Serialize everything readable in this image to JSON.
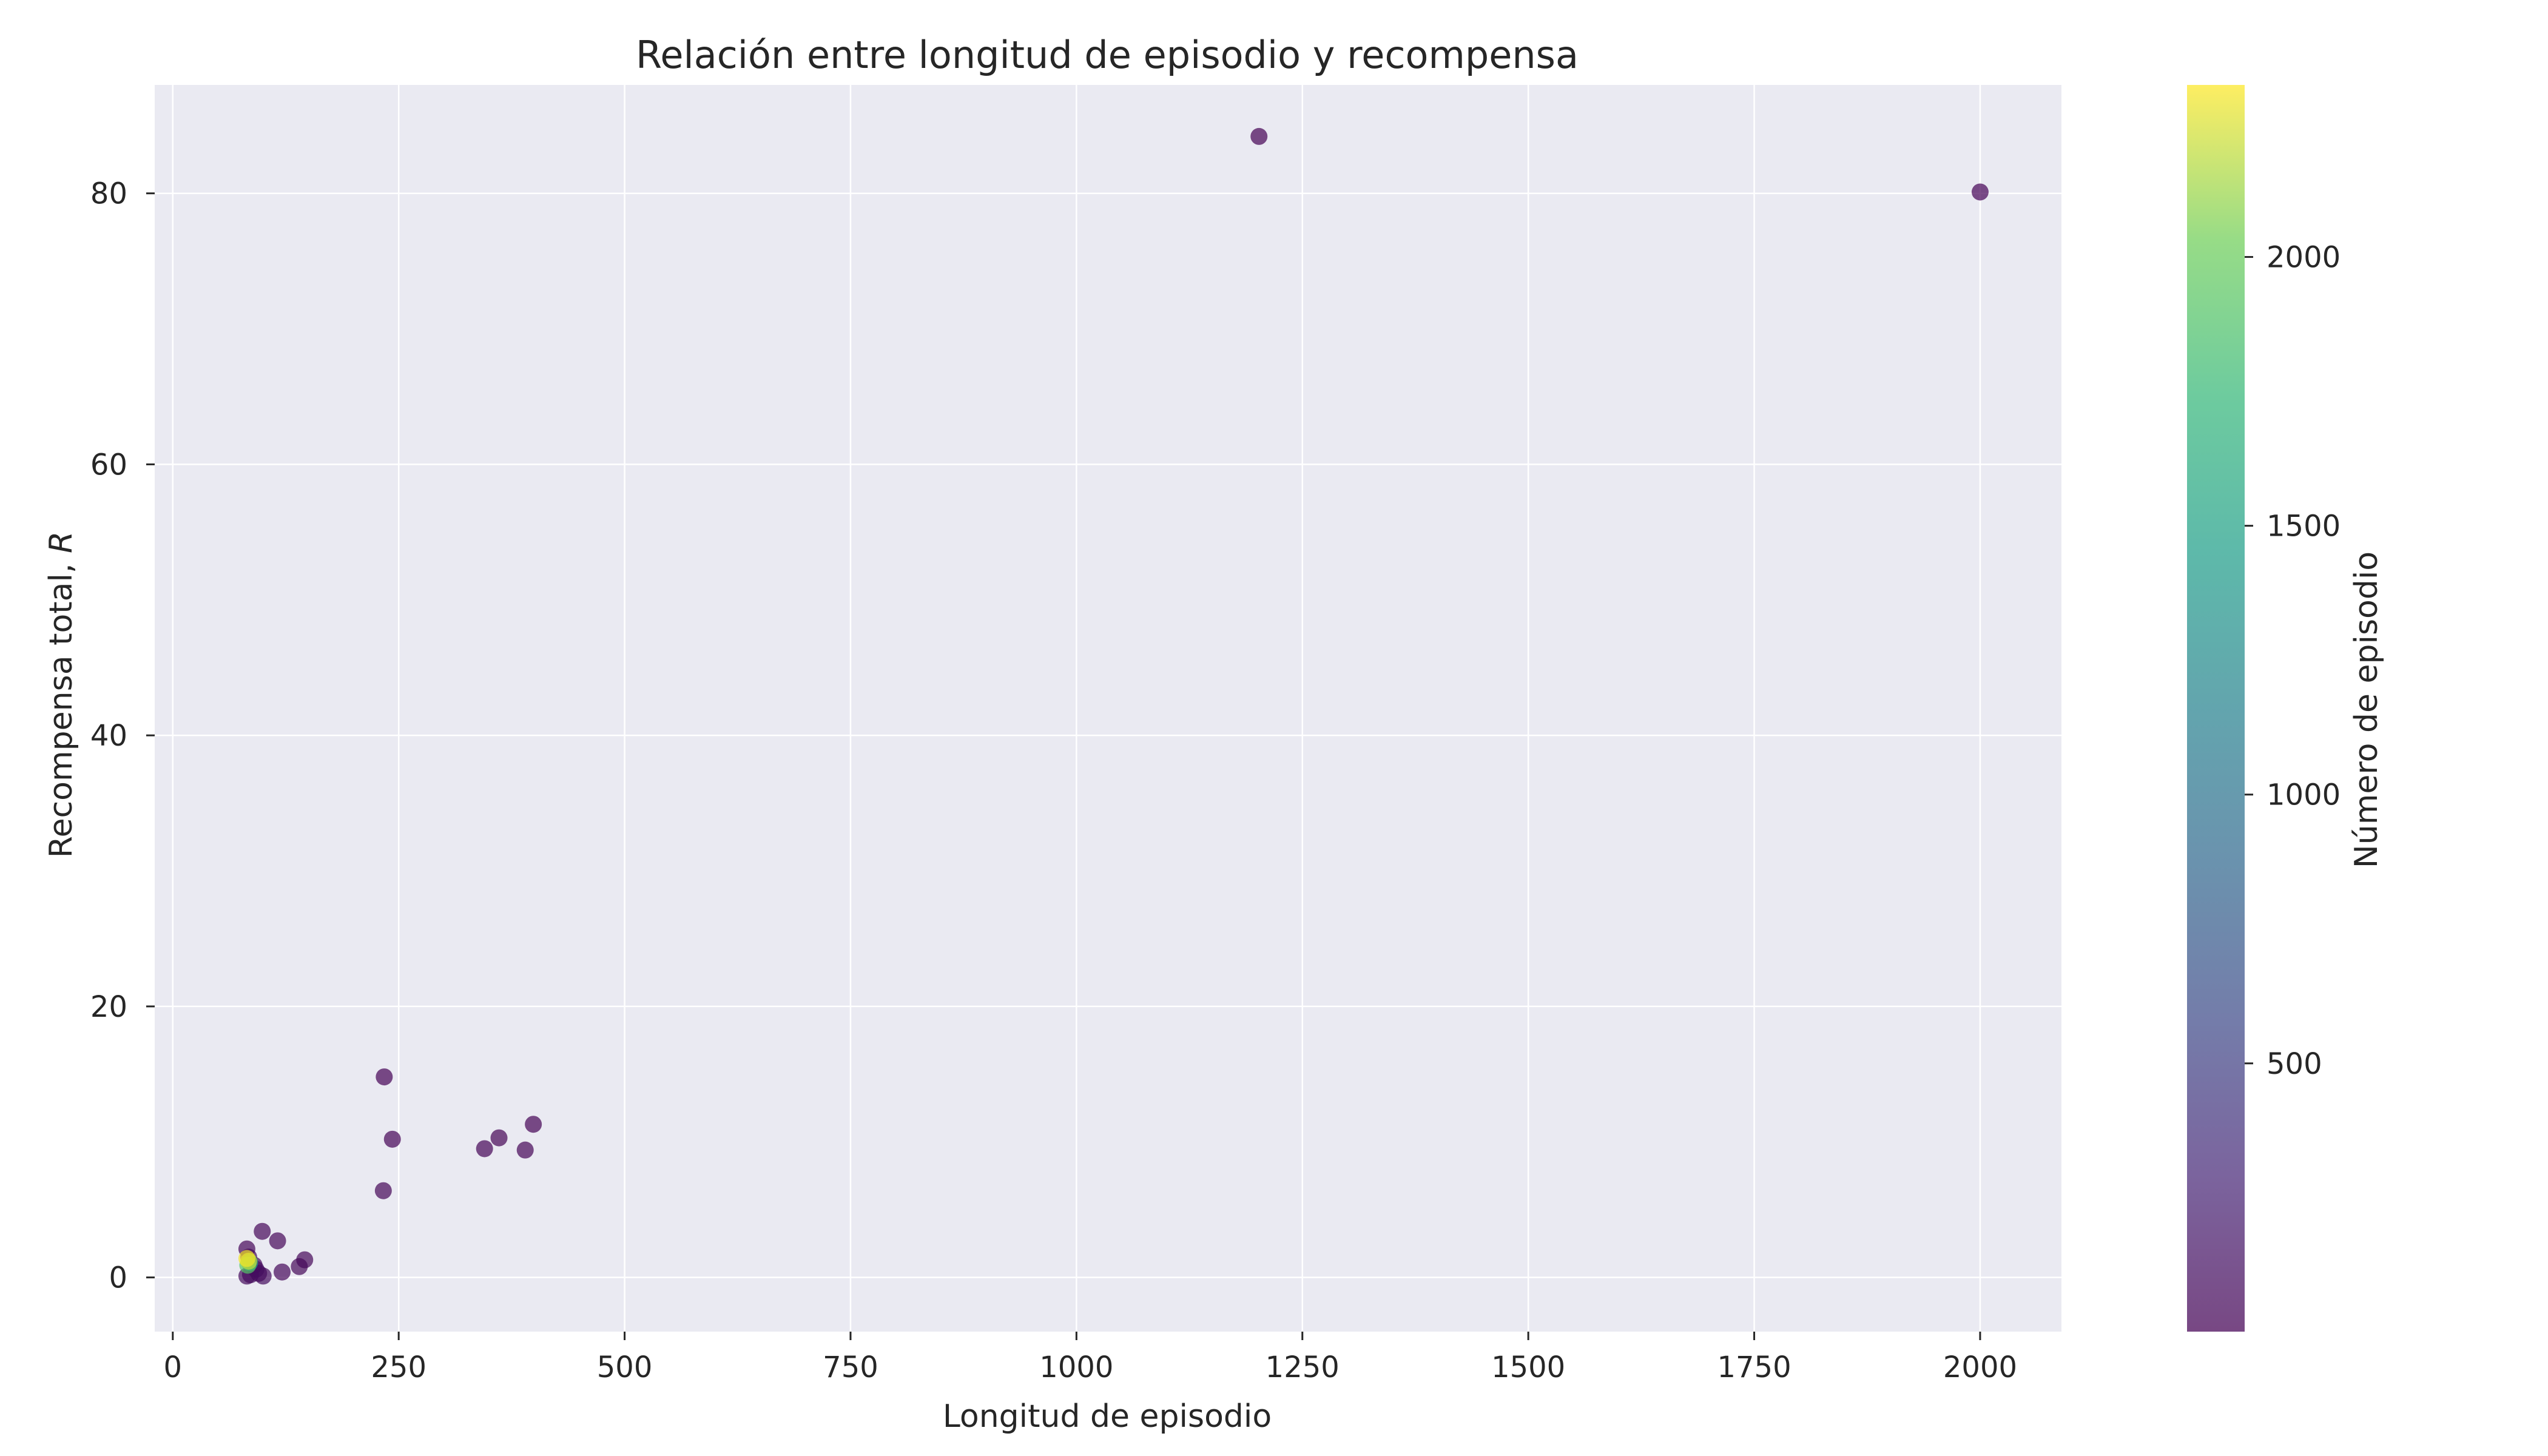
{
  "chart_data": {
    "type": "scatter",
    "title": "Relación entre longitud de episodio y recompensa",
    "xlabel": "Longitud de episodio",
    "ylabel_prefix": "Recompensa total, ",
    "ylabel_symbol": "R",
    "xlim": [
      -20,
      2090
    ],
    "ylim": [
      -4,
      88
    ],
    "xticks": [
      0,
      250,
      500,
      750,
      1000,
      1250,
      1500,
      1750,
      2000
    ],
    "yticks": [
      0,
      20,
      40,
      60,
      80
    ],
    "grid": true,
    "plot_background": "#eaeaf2",
    "grid_color": "#ffffff",
    "marker_alpha": 0.7,
    "colorbar": {
      "label": "Número de episodio",
      "range": [
        1,
        2320
      ],
      "ticks": [
        500,
        1000,
        1500,
        2000
      ],
      "colormap": "viridis"
    },
    "points": [
      {
        "x": 1202,
        "y": 84.2,
        "c": 5
      },
      {
        "x": 2000,
        "y": 80.1,
        "c": 8
      },
      {
        "x": 234,
        "y": 14.8,
        "c": 12
      },
      {
        "x": 399,
        "y": 11.3,
        "c": 15
      },
      {
        "x": 243,
        "y": 10.2,
        "c": 18
      },
      {
        "x": 361,
        "y": 10.3,
        "c": 20
      },
      {
        "x": 345,
        "y": 9.5,
        "c": 22
      },
      {
        "x": 390,
        "y": 9.4,
        "c": 25
      },
      {
        "x": 233,
        "y": 6.4,
        "c": 28
      },
      {
        "x": 99,
        "y": 3.4,
        "c": 30
      },
      {
        "x": 116,
        "y": 2.7,
        "c": 33
      },
      {
        "x": 82,
        "y": 2.1,
        "c": 36
      },
      {
        "x": 146,
        "y": 1.3,
        "c": 40
      },
      {
        "x": 140,
        "y": 0.8,
        "c": 44
      },
      {
        "x": 121,
        "y": 0.4,
        "c": 48
      },
      {
        "x": 84,
        "y": 1.5,
        "c": 52
      },
      {
        "x": 90,
        "y": 0.9,
        "c": 56
      },
      {
        "x": 95,
        "y": 0.3,
        "c": 60
      },
      {
        "x": 82,
        "y": 0.1,
        "c": 65
      },
      {
        "x": 86,
        "y": 0.2,
        "c": 70
      },
      {
        "x": 100,
        "y": 0.1,
        "c": 80
      },
      {
        "x": 92,
        "y": 0.6,
        "c": 90
      },
      {
        "x": 85,
        "y": 1.1,
        "c": 1400
      },
      {
        "x": 83,
        "y": 0.9,
        "c": 1900
      },
      {
        "x": 84,
        "y": 1.2,
        "c": 2200
      },
      {
        "x": 82,
        "y": 1.4,
        "c": 2300
      }
    ]
  }
}
